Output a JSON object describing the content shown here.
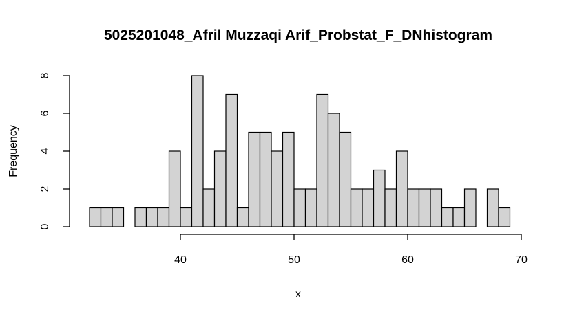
{
  "chart_data": {
    "type": "bar",
    "title": "5025201048_Afril Muzzaqi Arif_Probstat_F_DNhistogram",
    "xlabel": "x",
    "ylabel": "Frequency",
    "bin_width": 1,
    "x_start": 32,
    "values": [
      1,
      1,
      1,
      0,
      1,
      1,
      1,
      4,
      1,
      8,
      2,
      4,
      7,
      1,
      5,
      5,
      4,
      5,
      2,
      2,
      7,
      6,
      5,
      2,
      2,
      3,
      2,
      4,
      2,
      2,
      2,
      1,
      1,
      2,
      0,
      2,
      1
    ],
    "xlim": [
      32,
      70
    ],
    "ylim": [
      0,
      8
    ],
    "x_ticks": [
      "40",
      "50",
      "60",
      "70"
    ],
    "y_ticks": [
      "0",
      "2",
      "4",
      "6",
      "8"
    ],
    "bar_fill": "#d3d3d3",
    "bar_stroke": "#000000",
    "grid": false,
    "legend": "none"
  }
}
